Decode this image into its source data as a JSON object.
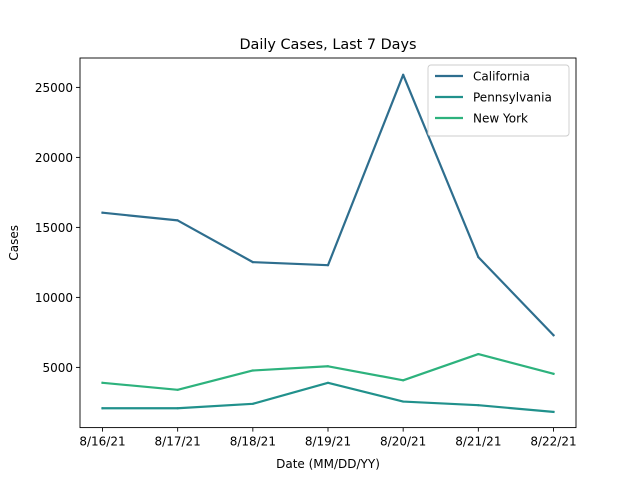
{
  "chart_data": {
    "type": "line",
    "title": "Daily Cases, Last 7 Days",
    "xlabel": "Date (MM/DD/YY)",
    "ylabel": "Cases",
    "categories": [
      "8/16/21",
      "8/17/21",
      "8/18/21",
      "8/19/21",
      "8/20/21",
      "8/21/21",
      "8/22/21"
    ],
    "ylim": [
      700,
      27100
    ],
    "yticks": [
      5000,
      10000,
      15000,
      20000,
      25000
    ],
    "ytick_labels": [
      "5000",
      "10000",
      "15000",
      "20000",
      "25000"
    ],
    "grid": false,
    "legend_position": "top-right",
    "series": [
      {
        "name": "California",
        "color": "#2e6e8e",
        "values": [
          16050,
          15500,
          12520,
          12300,
          25900,
          12880,
          7300
        ]
      },
      {
        "name": "Pennsylvania",
        "color": "#21918c",
        "values": [
          2080,
          2080,
          2400,
          3900,
          2560,
          2300,
          1820
        ]
      },
      {
        "name": "New York",
        "color": "#2db27d",
        "values": [
          3900,
          3400,
          4780,
          5080,
          4080,
          5950,
          4540
        ]
      }
    ]
  }
}
